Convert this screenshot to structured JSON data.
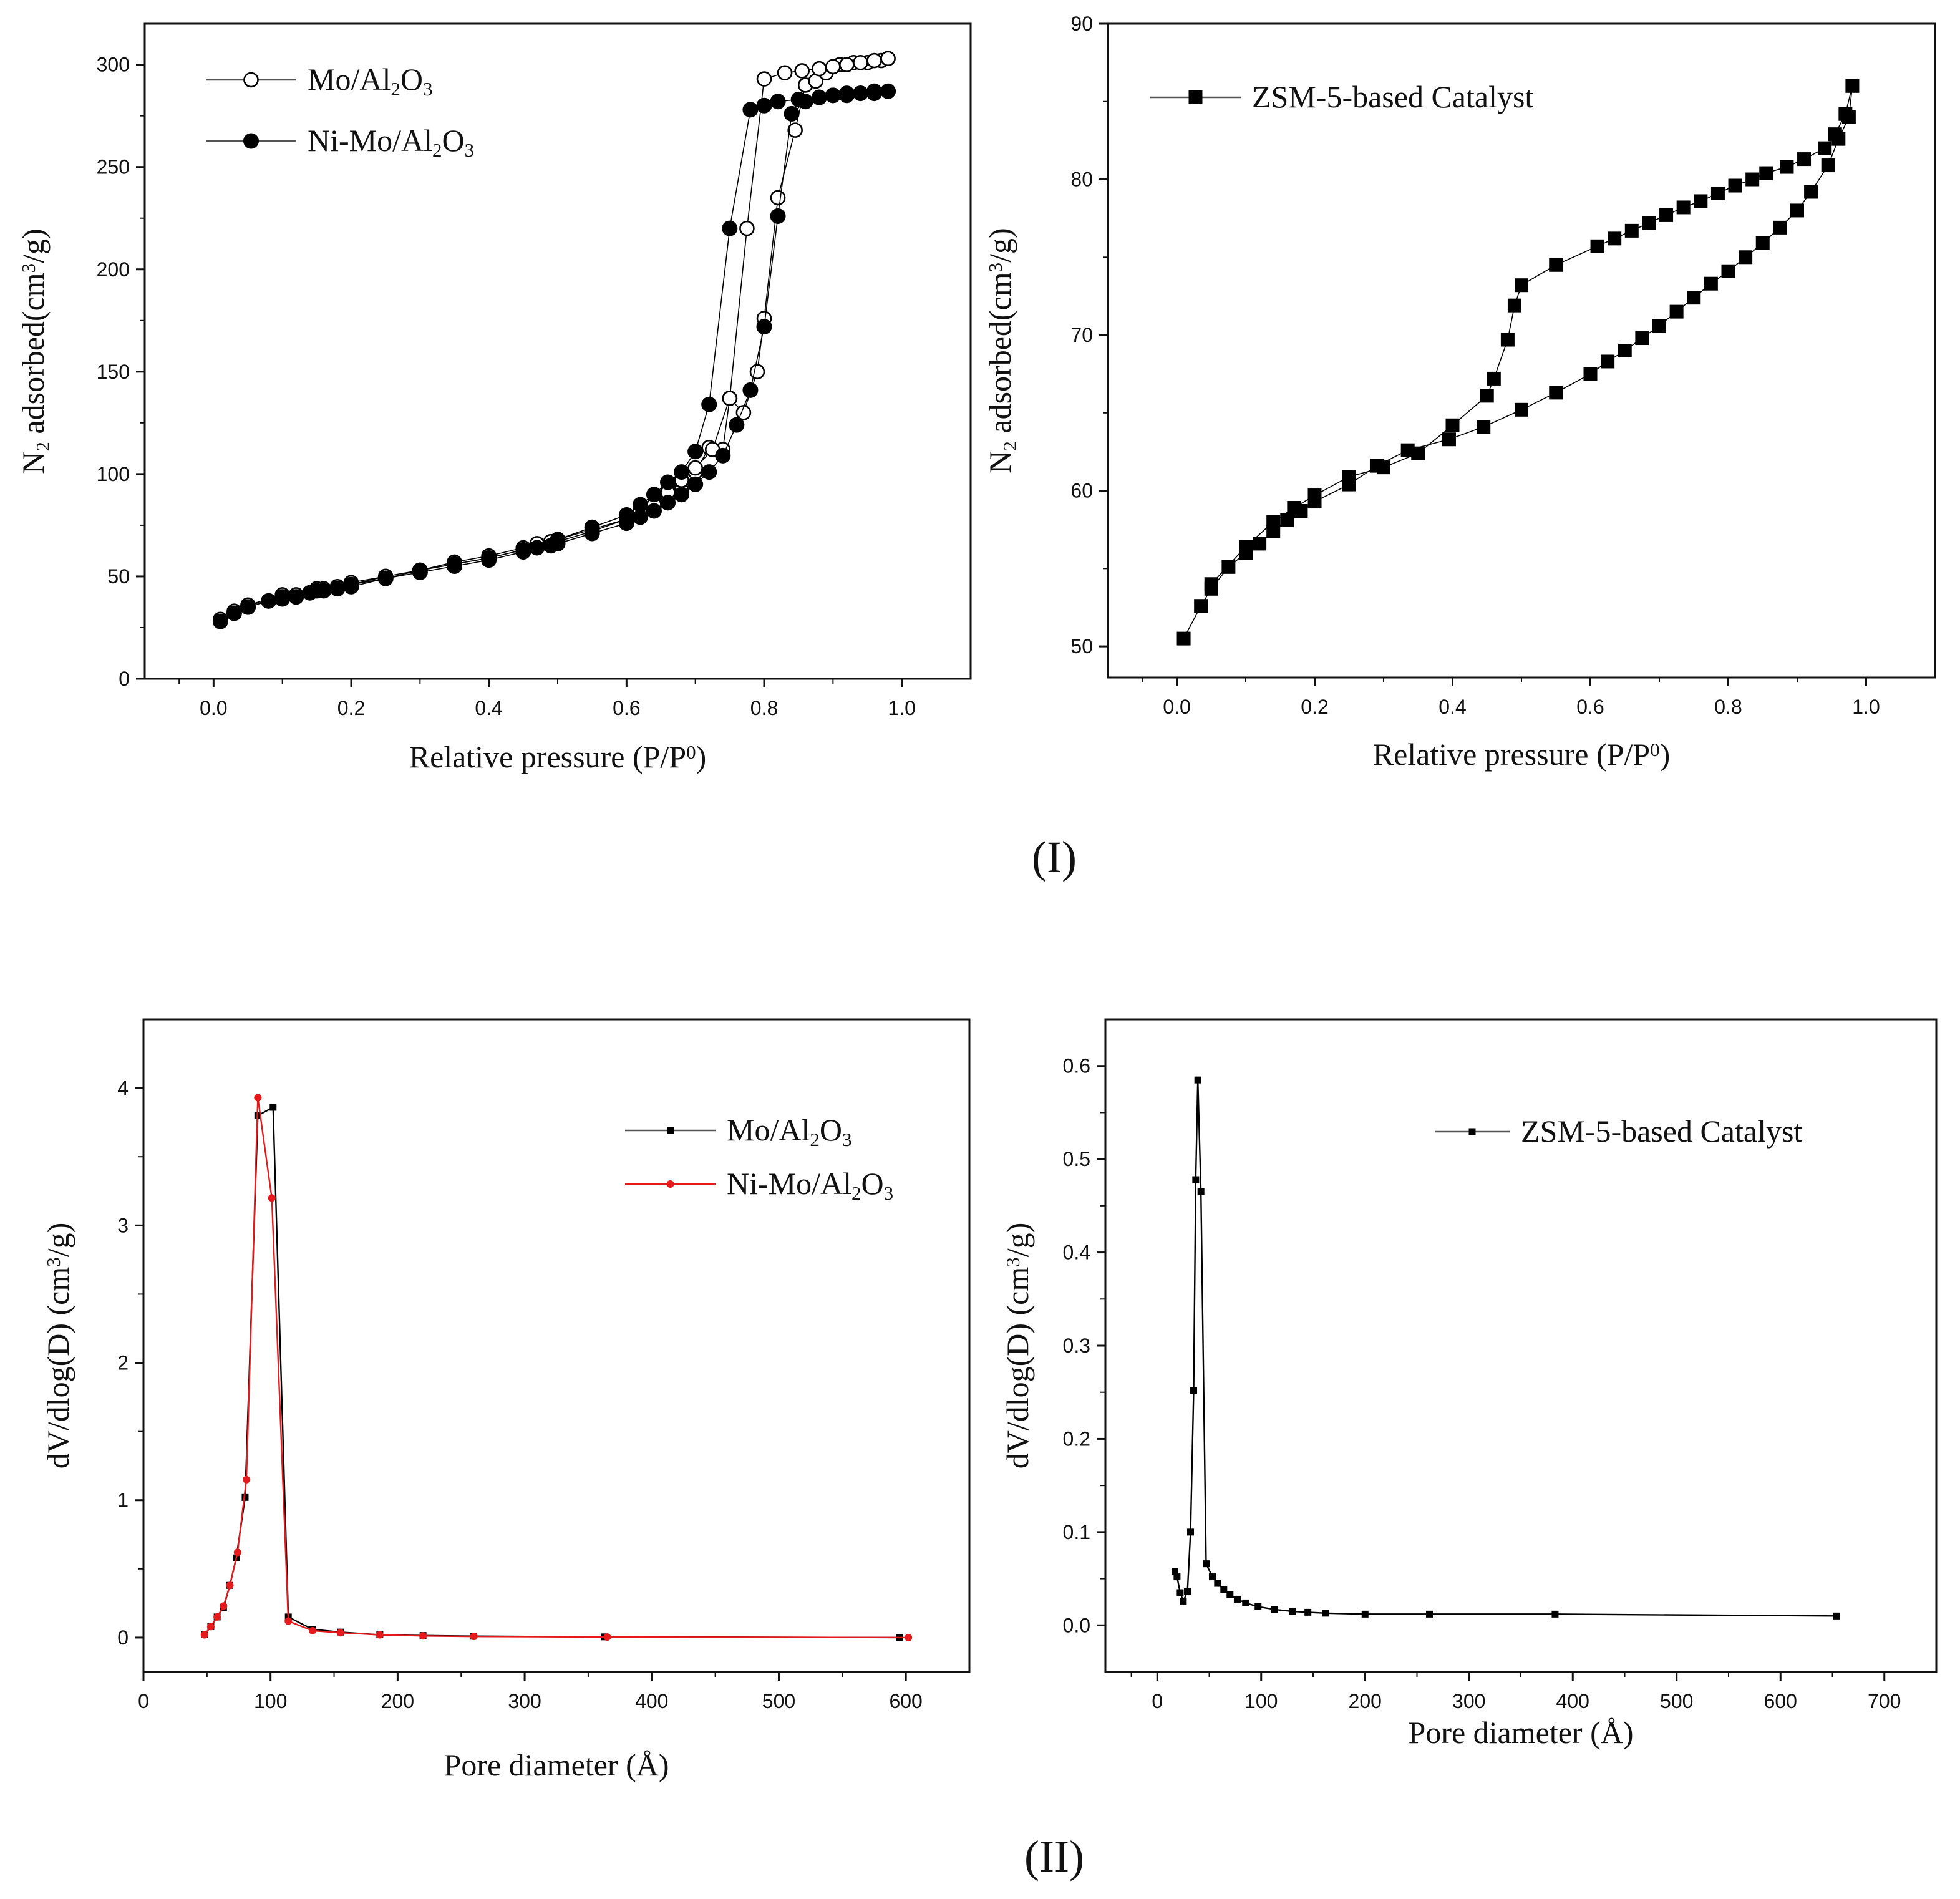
{
  "figure": {
    "panel_labels": [
      "(I)",
      "(II)"
    ]
  },
  "chart_data": [
    {
      "id": "a",
      "type": "scatter",
      "title": "",
      "xlabel": "Relative pressure (P/P⁰)",
      "ylabel": "N₂ adsorbed(cm³/g)",
      "xlim": [
        -0.1,
        1.1
      ],
      "ylim": [
        0,
        320
      ],
      "xticks": [
        0.0,
        0.2,
        0.4,
        0.6,
        0.8,
        1.0
      ],
      "xtick_labels": [
        "0.0",
        "0.2",
        "0.4",
        "0.6",
        "0.8",
        "1.0"
      ],
      "yticks": [
        0,
        50,
        100,
        150,
        200,
        250,
        300
      ],
      "ytick_labels": [
        "0",
        "50",
        "100",
        "150",
        "200",
        "250",
        "300"
      ],
      "legend_position": "top-left",
      "series": [
        {
          "name": "Mo/Al₂O₃",
          "marker": "open-circle",
          "color": "#000000",
          "x": [
            0.01,
            0.03,
            0.05,
            0.08,
            0.1,
            0.12,
            0.14,
            0.16,
            0.18,
            0.2,
            0.25,
            0.3,
            0.35,
            0.4,
            0.45,
            0.47,
            0.49,
            0.5,
            0.55,
            0.6,
            0.62,
            0.64,
            0.66,
            0.68,
            0.7,
            0.72,
            0.74,
            0.75,
            0.77,
            0.79,
            0.8,
            0.82,
            0.845,
            0.86,
            0.875,
            0.89,
            0.91,
            0.93,
            0.95,
            0.97,
            0.98,
            0.96,
            0.94,
            0.92,
            0.9,
            0.88,
            0.855,
            0.83,
            0.8,
            0.775,
            0.75,
            0.725,
            0.7,
            0.68,
            0.66,
            0.64,
            0.62,
            0.6,
            0.55,
            0.5,
            0.45,
            0.4,
            0.35,
            0.3,
            0.25,
            0.2,
            0.15,
            0.1,
            0.05
          ],
          "y": [
            29,
            33,
            36,
            38,
            40,
            41,
            42,
            44,
            45,
            46,
            50,
            53,
            57,
            60,
            64,
            66,
            67,
            68,
            73,
            78,
            81,
            84,
            88,
            92,
            101,
            113,
            112,
            137,
            130,
            150,
            176,
            235,
            268,
            290,
            292,
            296,
            300,
            301,
            301,
            302,
            303,
            302,
            301,
            300,
            299,
            298,
            297,
            296,
            293,
            220,
            137,
            112,
            103,
            97,
            91,
            85,
            82,
            78,
            72,
            67,
            63,
            59,
            56,
            53,
            50,
            47,
            44,
            41,
            36
          ]
        },
        {
          "name": "Ni-Mo/Al₂O₃",
          "marker": "filled-circle",
          "color": "#000000",
          "x": [
            0.01,
            0.03,
            0.05,
            0.08,
            0.1,
            0.12,
            0.14,
            0.16,
            0.18,
            0.2,
            0.25,
            0.3,
            0.35,
            0.4,
            0.45,
            0.47,
            0.49,
            0.5,
            0.55,
            0.6,
            0.62,
            0.64,
            0.66,
            0.68,
            0.7,
            0.72,
            0.74,
            0.76,
            0.78,
            0.8,
            0.82,
            0.84,
            0.86,
            0.88,
            0.9,
            0.92,
            0.94,
            0.96,
            0.98,
            0.96,
            0.94,
            0.92,
            0.9,
            0.88,
            0.85,
            0.82,
            0.8,
            0.78,
            0.75,
            0.72,
            0.7,
            0.68,
            0.66,
            0.64,
            0.62,
            0.6,
            0.55,
            0.5,
            0.45,
            0.4,
            0.35,
            0.3,
            0.25,
            0.2,
            0.15,
            0.1,
            0.05
          ],
          "y": [
            28,
            32,
            35,
            38,
            39,
            40,
            42,
            43,
            44,
            45,
            49,
            52,
            55,
            58,
            62,
            64,
            65,
            66,
            71,
            76,
            79,
            82,
            86,
            90,
            95,
            101,
            109,
            124,
            141,
            172,
            226,
            276,
            282,
            284,
            285,
            286,
            286,
            287,
            287,
            286,
            286,
            285,
            285,
            284,
            283,
            282,
            280,
            278,
            220,
            134,
            111,
            101,
            96,
            90,
            85,
            80,
            74,
            68,
            63,
            59,
            56,
            53,
            49,
            46,
            43,
            40,
            35
          ]
        }
      ]
    },
    {
      "id": "b",
      "type": "scatter",
      "title": "",
      "xlabel": "Relative pressure (P/P⁰)",
      "ylabel": "N₂ adsorbed(cm³/g)",
      "xlim": [
        -0.1,
        1.1
      ],
      "ylim": [
        48,
        90
      ],
      "xticks": [
        0.0,
        0.2,
        0.4,
        0.6,
        0.8,
        1.0
      ],
      "xtick_labels": [
        "0.0",
        "0.2",
        "0.4",
        "0.6",
        "0.8",
        "1.0"
      ],
      "yticks": [
        50,
        60,
        70,
        80,
        90
      ],
      "ytick_labels": [
        "50",
        "60",
        "70",
        "80",
        "90"
      ],
      "legend_position": "top-left",
      "series": [
        {
          "name": "ZSM-5-based Catalyst",
          "marker": "filled-square",
          "color": "#000000",
          "x": [
            0.01,
            0.035,
            0.05,
            0.075,
            0.1,
            0.12,
            0.14,
            0.16,
            0.18,
            0.2,
            0.25,
            0.29,
            0.335,
            0.395,
            0.445,
            0.5,
            0.55,
            0.6,
            0.625,
            0.65,
            0.675,
            0.7,
            0.725,
            0.75,
            0.775,
            0.8,
            0.825,
            0.85,
            0.875,
            0.9,
            0.92,
            0.945,
            0.96,
            0.975,
            0.98,
            0.97,
            0.955,
            0.94,
            0.91,
            0.885,
            0.855,
            0.835,
            0.81,
            0.785,
            0.76,
            0.735,
            0.71,
            0.685,
            0.66,
            0.635,
            0.61,
            0.55,
            0.5,
            0.49,
            0.48,
            0.46,
            0.45,
            0.4,
            0.35,
            0.3,
            0.25,
            0.2,
            0.17,
            0.14,
            0.1,
            0.05
          ],
          "y": [
            50.5,
            52.6,
            53.7,
            55.1,
            56.0,
            56.6,
            57.4,
            58.1,
            58.7,
            59.3,
            60.4,
            61.6,
            62.6,
            63.3,
            64.1,
            65.2,
            66.3,
            67.5,
            68.3,
            69.0,
            69.8,
            70.6,
            71.5,
            72.4,
            73.3,
            74.1,
            75.0,
            75.9,
            76.9,
            78.0,
            79.2,
            80.9,
            82.6,
            84.0,
            86.0,
            84.2,
            82.9,
            82.0,
            81.3,
            80.8,
            80.4,
            80.0,
            79.6,
            79.1,
            78.6,
            78.2,
            77.7,
            77.2,
            76.7,
            76.2,
            75.7,
            74.5,
            73.2,
            71.9,
            69.7,
            67.2,
            66.1,
            64.2,
            62.4,
            61.5,
            60.9,
            59.7,
            58.9,
            58.0,
            56.4,
            54.0
          ]
        }
      ]
    },
    {
      "id": "c",
      "type": "line",
      "title": "",
      "xlabel": "Pore diameter (Å)",
      "ylabel": "dV/dlog(D) (cm³/g)",
      "xlim": [
        0,
        650
      ],
      "ylim": [
        -0.25,
        4.5
      ],
      "xticks": [
        0,
        100,
        200,
        300,
        400,
        500,
        600
      ],
      "xtick_labels": [
        "0",
        "100",
        "200",
        "300",
        "400",
        "500",
        "600"
      ],
      "yticks": [
        0,
        1,
        2,
        3,
        4
      ],
      "ytick_labels": [
        "0",
        "1",
        "2",
        "3",
        "4"
      ],
      "legend_position": "top-right",
      "series": [
        {
          "name": "Mo/Al₂O₃",
          "marker": "small-square",
          "color": "#000000",
          "x": [
            48,
            53,
            58,
            63,
            68,
            73,
            80,
            90,
            102,
            114,
            133,
            155,
            186,
            220,
            260,
            363,
            595
          ],
          "y": [
            0.02,
            0.08,
            0.15,
            0.22,
            0.38,
            0.58,
            1.02,
            3.8,
            3.86,
            0.15,
            0.06,
            0.04,
            0.02,
            0.015,
            0.01,
            0.005,
            0.0
          ]
        },
        {
          "name": "Ni-Mo/Al₂O₃",
          "marker": "small-circle",
          "color": "#e41a1c",
          "x": [
            48,
            53,
            58,
            63,
            68,
            74,
            81,
            90,
            101,
            114,
            133,
            155,
            186,
            220,
            260,
            365,
            602
          ],
          "y": [
            0.02,
            0.08,
            0.15,
            0.23,
            0.38,
            0.62,
            1.15,
            3.93,
            3.2,
            0.12,
            0.05,
            0.035,
            0.02,
            0.012,
            0.008,
            0.004,
            0.0
          ]
        }
      ]
    },
    {
      "id": "d",
      "type": "line",
      "title": "",
      "xlabel": "Pore diameter (Å)",
      "ylabel": "dV/dlog(D) (cm³/g)",
      "xlim": [
        -50,
        750
      ],
      "ylim": [
        -0.05,
        0.65
      ],
      "xticks": [
        0,
        100,
        200,
        300,
        400,
        500,
        600,
        700
      ],
      "xtick_labels": [
        "0",
        "100",
        "200",
        "300",
        "400",
        "500",
        "600",
        "700"
      ],
      "yticks": [
        0.0,
        0.1,
        0.2,
        0.3,
        0.4,
        0.5,
        0.6
      ],
      "ytick_labels": [
        "0.0",
        "0.1",
        "0.2",
        "0.3",
        "0.4",
        "0.5",
        "0.6"
      ],
      "legend_position": "top-right",
      "series": [
        {
          "name": "ZSM-5-based Catalyst",
          "marker": "small-square",
          "color": "#000000",
          "x": [
            17,
            19,
            22,
            25,
            29,
            32,
            35,
            37,
            39,
            42,
            47,
            53,
            58,
            64,
            70,
            77,
            85,
            97,
            113,
            130,
            145,
            162,
            200,
            262,
            383,
            654
          ],
          "y": [
            0.058,
            0.052,
            0.035,
            0.026,
            0.036,
            0.1,
            0.252,
            0.478,
            0.585,
            0.465,
            0.066,
            0.052,
            0.045,
            0.038,
            0.033,
            0.028,
            0.024,
            0.02,
            0.017,
            0.015,
            0.014,
            0.013,
            0.012,
            0.012,
            0.012,
            0.01
          ]
        }
      ]
    }
  ]
}
